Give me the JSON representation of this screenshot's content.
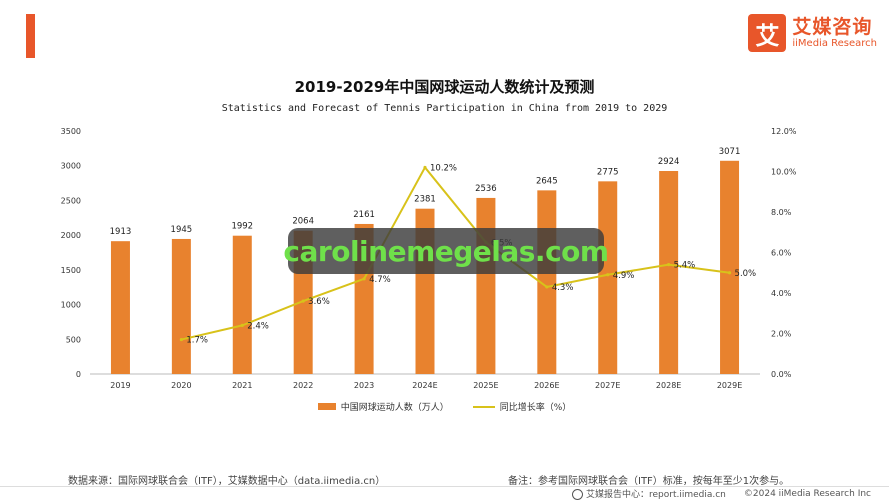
{
  "brand": {
    "mark": "艾",
    "name_cn": "艾媒咨询",
    "name_en": "iiMedia Research",
    "accent_color": "#e8562a"
  },
  "title": "2019-2029年中国网球运动人数统计及预测",
  "subtitle": "Statistics and Forecast of Tennis Participation in China from 2019 to 2029",
  "chart_data": {
    "type": "bar",
    "categories": [
      "2019",
      "2020",
      "2021",
      "2022",
      "2023",
      "2024E",
      "2025E",
      "2026E",
      "2027E",
      "2028E",
      "2029E"
    ],
    "series": [
      {
        "name": "中国网球运动人数（万人）",
        "type": "bar",
        "axis": "left",
        "color": "#e8822e",
        "values": [
          1913,
          1945,
          1992,
          2064,
          2161,
          2381,
          2536,
          2645,
          2775,
          2924,
          3071
        ]
      },
      {
        "name": "同比增长率（%）",
        "type": "line",
        "axis": "right",
        "color": "#d8c21a",
        "values": [
          null,
          1.7,
          2.4,
          3.6,
          4.7,
          10.2,
          6.5,
          4.3,
          4.9,
          5.4,
          5.0
        ],
        "labels": [
          "",
          "1.7%",
          "2.4%",
          "3.6%",
          "4.7%",
          "10.2%",
          "6.5%",
          "4.3%",
          "4.9%",
          "5.4%",
          "5.0%"
        ]
      }
    ],
    "y_left": {
      "ylim": [
        0,
        3500
      ],
      "ticks": [
        "0",
        "500",
        "1000",
        "1500",
        "2000",
        "2500",
        "3000",
        "3500"
      ]
    },
    "y_right": {
      "ylim": [
        0,
        12
      ],
      "ticks": [
        "0.0%",
        "2.0%",
        "4.0%",
        "6.0%",
        "8.0%",
        "10.0%",
        "12.0%"
      ]
    },
    "grid": false,
    "legend_position": "bottom"
  },
  "legend": {
    "bar_label": "中国网球运动人数（万人）",
    "line_label": "同比增长率（%）"
  },
  "footer": {
    "source": "数据来源：国际网球联合会（ITF），艾媒数据中心（data.iimedia.cn）",
    "note": "备注：参考国际网球联合会（ITF）标准，按每年至少1次参与。",
    "report_center": "艾媒报告中心：report.iimedia.cn",
    "copyright": "©2024  iiMedia Research  Inc"
  },
  "watermark": "carolinemegelas.com"
}
